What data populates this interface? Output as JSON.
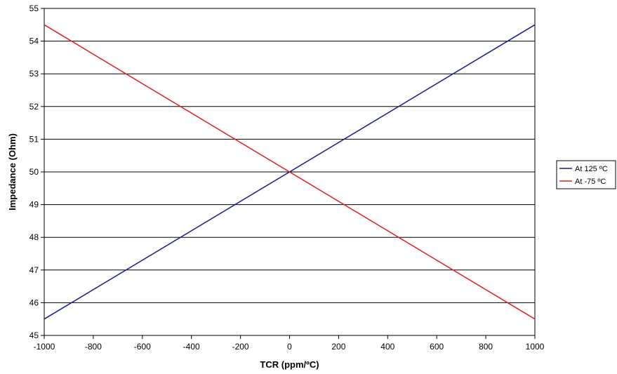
{
  "chart_data": {
    "type": "line",
    "title": "",
    "xlabel": "TCR (ppm/ºC)",
    "ylabel": "Impedance (Ohm)",
    "xlim": [
      -1000,
      1000
    ],
    "ylim": [
      45,
      55
    ],
    "xticks": [
      -1000,
      -800,
      -600,
      -400,
      -200,
      0,
      200,
      400,
      600,
      800,
      1000
    ],
    "yticks": [
      45,
      46,
      47,
      48,
      49,
      50,
      51,
      52,
      53,
      54,
      55
    ],
    "grid": "horizontal",
    "legend_position": "right",
    "series": [
      {
        "name": "At 125 ºC",
        "color": "#1a1a8c",
        "x": [
          -1000,
          1000
        ],
        "y": [
          45.5,
          54.5
        ]
      },
      {
        "name": "At -75 ºC",
        "color": "#e02020",
        "x": [
          -1000,
          1000
        ],
        "y": [
          54.5,
          45.5
        ]
      }
    ]
  }
}
